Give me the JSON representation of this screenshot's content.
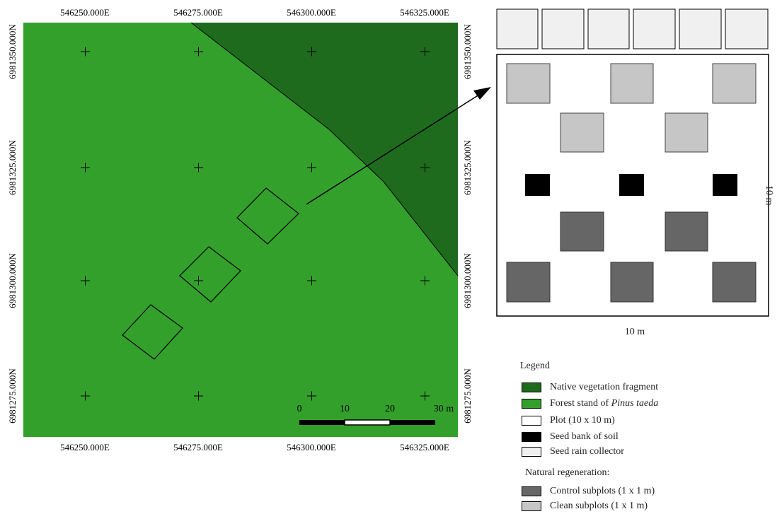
{
  "map": {
    "top_easting_labels": [
      "546250.000E",
      "546275.000E",
      "546300.000E",
      "546325.000E"
    ],
    "bottom_easting_labels": [
      "546250.000E",
      "546275.000E",
      "546300.000E",
      "546325.000E"
    ],
    "left_northing_labels": [
      "6981350.000N",
      "6981325.000N",
      "6981300.000N",
      "6981275.000N"
    ],
    "right_northing_labels": [
      "6981350.000N",
      "6981325.000N",
      "6981300.000N",
      "6981275.000N"
    ],
    "scale_bar": {
      "ticks": [
        "0",
        "10",
        "20"
      ],
      "end_label": "30 m"
    },
    "colors": {
      "native_fragment": "#1e6b1e",
      "pinus_stand": "#33a02c"
    }
  },
  "plot_diagram": {
    "width_label": "10 m",
    "height_label": "10 m",
    "colors": {
      "seed_rain": "#f0f0f0",
      "seed_bank": "#000000",
      "control": "#666666",
      "clean": "#c6c6c6",
      "plot": "#ffffff"
    }
  },
  "legend": {
    "title": "Legend",
    "items": [
      {
        "label": "Native vegetation  fragment",
        "color": "#1e6b1e"
      },
      {
        "label_before": "Forest stand of ",
        "label_italic": "Pinus taeda",
        "color": "#33a02c"
      },
      {
        "label": "Plot (10 x 10 m)",
        "color": "#ffffff"
      },
      {
        "label": "Seed bank of soil",
        "color": "#000000"
      },
      {
        "label": "Seed rain collector",
        "color": "#f0f0f0"
      }
    ],
    "regeneration_heading": "Natural regeneration:",
    "regeneration_items": [
      {
        "label": "Control subplots  (1 x 1 m)",
        "color": "#666666"
      },
      {
        "label": "Clean subplots  (1 x 1 m)",
        "color": "#c6c6c6"
      }
    ]
  }
}
